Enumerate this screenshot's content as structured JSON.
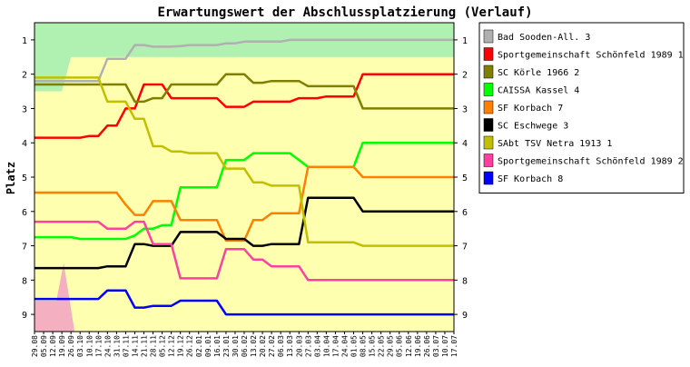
{
  "chart_data": {
    "type": "line",
    "title": "Erwartungswert der Abschlussplatzierung (Verlauf)",
    "ylabel": "Platz",
    "xlabel": "",
    "ylim": [
      9.5,
      0.5
    ],
    "y_inverted": true,
    "y_ticks": [
      1,
      2,
      3,
      4,
      5,
      6,
      7,
      8,
      9
    ],
    "grid": false,
    "legend_position": "right",
    "x": [
      "29.08",
      "05.09",
      "12.09",
      "19.09",
      "26.09",
      "03.10",
      "10.10",
      "17.10",
      "24.10",
      "31.10",
      "07.11",
      "14.11",
      "21.11",
      "28.11",
      "05.12",
      "12.12",
      "19.12",
      "26.12",
      "02.01",
      "09.01",
      "16.01",
      "23.01",
      "30.01",
      "06.02",
      "13.02",
      "20.02",
      "27.02",
      "06.03",
      "13.03",
      "20.03",
      "27.03",
      "03.04",
      "10.04",
      "17.04",
      "24.04",
      "01.05",
      "08.05",
      "15.05",
      "22.05",
      "29.05",
      "05.06",
      "12.06",
      "19.06",
      "26.06",
      "03.07",
      "10.07",
      "17.07"
    ],
    "colors": {
      "background_band": "#ffffb0",
      "top_band": "#b0f0b0",
      "bottom_band": "#f4b0c0"
    },
    "series": [
      {
        "name": "Bad Sooden-All. 3",
        "color": "#b0b0b0",
        "values": [
          2.2,
          2.2,
          2.2,
          2.2,
          2.2,
          2.2,
          2.2,
          2.2,
          1.55,
          1.55,
          1.55,
          1.15,
          1.15,
          1.2,
          1.2,
          1.2,
          1.18,
          1.15,
          1.15,
          1.15,
          1.15,
          1.1,
          1.1,
          1.05,
          1.05,
          1.05,
          1.05,
          1.05,
          1.0,
          1.0,
          1.0,
          1.0,
          1.0,
          1.0,
          1.0,
          1.0,
          1.0,
          1.0,
          1.0,
          1.0,
          1.0,
          1.0,
          1.0,
          1.0,
          1.0,
          1.0,
          1.0
        ]
      },
      {
        "name": "Sportgemeinschaft Schönfeld 1989 1",
        "color": "#ff0000",
        "values": [
          3.85,
          3.85,
          3.85,
          3.85,
          3.85,
          3.85,
          3.8,
          3.8,
          3.5,
          3.5,
          3.0,
          3.0,
          2.3,
          2.3,
          2.3,
          2.7,
          2.7,
          2.7,
          2.7,
          2.7,
          2.7,
          2.95,
          2.95,
          2.95,
          2.8,
          2.8,
          2.8,
          2.8,
          2.8,
          2.7,
          2.7,
          2.7,
          2.65,
          2.65,
          2.65,
          2.65,
          2.0,
          2.0,
          2.0,
          2.0,
          2.0,
          2.0,
          2.0,
          2.0,
          2.0,
          2.0,
          2.0
        ]
      },
      {
        "name": "SC Körle 1966 2",
        "color": "#808000",
        "values": [
          2.3,
          2.3,
          2.3,
          2.3,
          2.3,
          2.3,
          2.3,
          2.3,
          2.3,
          2.3,
          2.3,
          2.8,
          2.8,
          2.7,
          2.7,
          2.3,
          2.3,
          2.3,
          2.3,
          2.3,
          2.3,
          2.0,
          2.0,
          2.0,
          2.25,
          2.25,
          2.2,
          2.2,
          2.2,
          2.2,
          2.35,
          2.35,
          2.35,
          2.35,
          2.35,
          2.35,
          3.0,
          3.0,
          3.0,
          3.0,
          3.0,
          3.0,
          3.0,
          3.0,
          3.0,
          3.0,
          3.0
        ]
      },
      {
        "name": "CAISSA Kassel 4",
        "color": "#00ff00",
        "values": [
          6.75,
          6.75,
          6.75,
          6.75,
          6.75,
          6.8,
          6.8,
          6.8,
          6.8,
          6.8,
          6.8,
          6.7,
          6.5,
          6.5,
          6.4,
          6.4,
          5.3,
          5.3,
          5.3,
          5.3,
          5.3,
          4.5,
          4.5,
          4.5,
          4.3,
          4.3,
          4.3,
          4.3,
          4.3,
          4.5,
          4.7,
          4.7,
          4.7,
          4.7,
          4.7,
          4.7,
          4.0,
          4.0,
          4.0,
          4.0,
          4.0,
          4.0,
          4.0,
          4.0,
          4.0,
          4.0,
          4.0
        ]
      },
      {
        "name": "SF Korbach 7",
        "color": "#ff8000",
        "values": [
          5.45,
          5.45,
          5.45,
          5.45,
          5.45,
          5.45,
          5.45,
          5.45,
          5.45,
          5.45,
          5.8,
          6.1,
          6.1,
          5.7,
          5.7,
          5.7,
          6.25,
          6.25,
          6.25,
          6.25,
          6.25,
          6.85,
          6.85,
          6.85,
          6.25,
          6.25,
          6.05,
          6.05,
          6.05,
          6.05,
          4.7,
          4.7,
          4.7,
          4.7,
          4.7,
          4.7,
          5.0,
          5.0,
          5.0,
          5.0,
          5.0,
          5.0,
          5.0,
          5.0,
          5.0,
          5.0,
          5.0
        ]
      },
      {
        "name": "SC Eschwege 3",
        "color": "#000000",
        "values": [
          7.65,
          7.65,
          7.65,
          7.65,
          7.65,
          7.65,
          7.65,
          7.65,
          7.6,
          7.6,
          7.6,
          6.95,
          6.95,
          7.0,
          7.0,
          7.0,
          6.6,
          6.6,
          6.6,
          6.6,
          6.6,
          6.8,
          6.8,
          6.8,
          7.0,
          7.0,
          6.95,
          6.95,
          6.95,
          6.95,
          5.6,
          5.6,
          5.6,
          5.6,
          5.6,
          5.6,
          6.0,
          6.0,
          6.0,
          6.0,
          6.0,
          6.0,
          6.0,
          6.0,
          6.0,
          6.0,
          6.0
        ]
      },
      {
        "name": "SAbt TSV Netra 1913 1",
        "color": "#c0c000",
        "values": [
          2.1,
          2.1,
          2.1,
          2.1,
          2.1,
          2.1,
          2.1,
          2.1,
          2.8,
          2.8,
          2.8,
          3.3,
          3.3,
          4.1,
          4.1,
          4.25,
          4.25,
          4.3,
          4.3,
          4.3,
          4.3,
          4.75,
          4.75,
          4.75,
          5.15,
          5.15,
          5.25,
          5.25,
          5.25,
          5.25,
          6.9,
          6.9,
          6.9,
          6.9,
          6.9,
          6.9,
          7.0,
          7.0,
          7.0,
          7.0,
          7.0,
          7.0,
          7.0,
          7.0,
          7.0,
          7.0,
          7.0
        ]
      },
      {
        "name": "Sportgemeinschaft Schönfeld 1989 2",
        "color": "#ff40a0",
        "values": [
          6.3,
          6.3,
          6.3,
          6.3,
          6.3,
          6.3,
          6.3,
          6.3,
          6.5,
          6.5,
          6.5,
          6.3,
          6.3,
          6.95,
          6.95,
          6.95,
          7.95,
          7.95,
          7.95,
          7.95,
          7.95,
          7.1,
          7.1,
          7.1,
          7.4,
          7.4,
          7.6,
          7.6,
          7.6,
          7.6,
          8.0,
          8.0,
          8.0,
          8.0,
          8.0,
          8.0,
          8.0,
          8.0,
          8.0,
          8.0,
          8.0,
          8.0,
          8.0,
          8.0,
          8.0,
          8.0,
          8.0
        ]
      },
      {
        "name": "SF Korbach 8",
        "color": "#0000ff",
        "values": [
          8.55,
          8.55,
          8.55,
          8.55,
          8.55,
          8.55,
          8.55,
          8.55,
          8.3,
          8.3,
          8.3,
          8.8,
          8.8,
          8.75,
          8.75,
          8.75,
          8.6,
          8.6,
          8.6,
          8.6,
          8.6,
          9.0,
          9.0,
          9.0,
          9.0,
          9.0,
          9.0,
          9.0,
          9.0,
          9.0,
          9.0,
          9.0,
          9.0,
          9.0,
          9.0,
          9.0,
          9.0,
          9.0,
          9.0,
          9.0,
          9.0,
          9.0,
          9.0,
          9.0,
          9.0,
          9.0,
          9.0
        ]
      }
    ]
  }
}
